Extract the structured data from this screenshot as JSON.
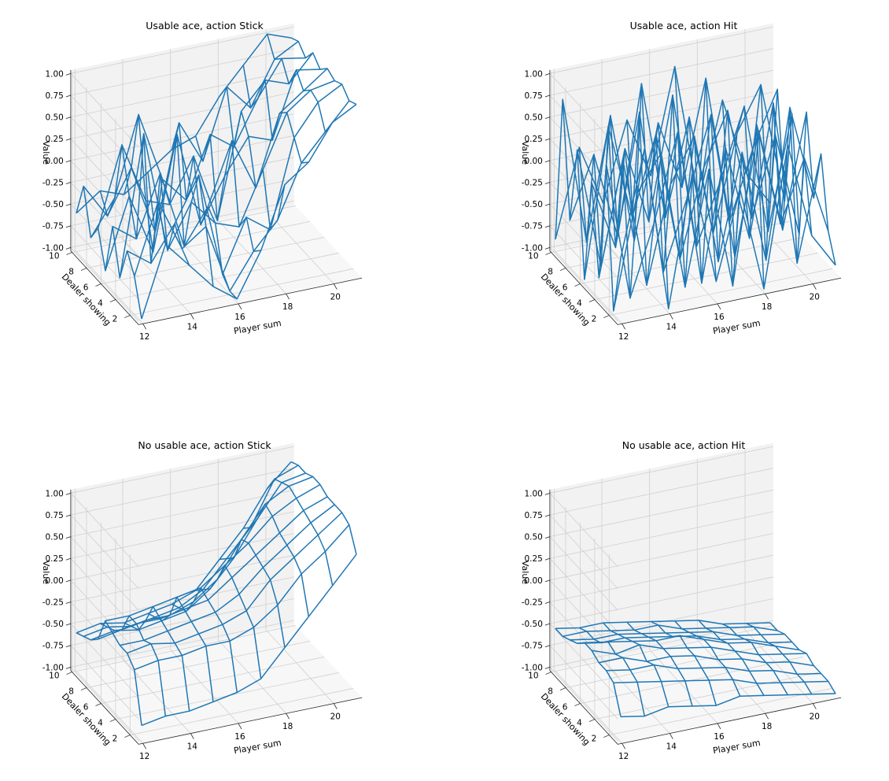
{
  "chart_data": [
    {
      "type": "wireframe-3d",
      "title": "Usable ace, action Stick",
      "xlabel": "Player sum",
      "ylabel": "Dealer showing",
      "zlabel": "Value",
      "x_ticks": [
        12,
        14,
        16,
        18,
        20
      ],
      "y_ticks": [
        2,
        4,
        6,
        8,
        10
      ],
      "z_ticks": [
        "-1.00",
        "-0.75",
        "-0.50",
        "-0.25",
        "0.00",
        "0.25",
        "0.50",
        "0.75",
        "1.00"
      ],
      "x": [
        12,
        13,
        14,
        15,
        16,
        17,
        18,
        19,
        20,
        21
      ],
      "y": [
        1,
        2,
        3,
        4,
        5,
        6,
        7,
        8,
        9,
        10
      ],
      "zlim": [
        -1,
        1
      ],
      "z": [
        [
          -1.0,
          -0.2,
          -0.5,
          -0.8,
          -1.0,
          -0.5,
          0.2,
          0.4,
          0.8,
          0.95
        ],
        [
          -0.6,
          0.2,
          -0.4,
          -0.2,
          -1.0,
          -0.6,
          -0.3,
          0.3,
          0.6,
          0.9
        ],
        [
          -0.4,
          -0.6,
          -0.2,
          0.3,
          -0.9,
          -0.3,
          -0.5,
          0.5,
          0.85,
          1.0
        ],
        [
          -0.8,
          0.8,
          -0.6,
          -0.1,
          -0.4,
          -0.5,
          0.1,
          0.7,
          0.9,
          0.95
        ],
        [
          -0.3,
          -0.5,
          0.2,
          -0.7,
          -0.3,
          0.4,
          -0.2,
          0.6,
          0.8,
          1.0
        ],
        [
          -0.9,
          -0.1,
          -0.8,
          0.5,
          -0.6,
          -0.1,
          0.3,
          0.2,
          0.95,
          0.9
        ],
        [
          -0.5,
          0.4,
          -0.3,
          -0.4,
          0.1,
          -0.7,
          0.5,
          0.8,
          0.7,
          1.0
        ],
        [
          -0.7,
          -0.3,
          0.6,
          -0.2,
          -0.5,
          0.2,
          0.0,
          0.5,
          0.9,
          0.85
        ],
        [
          -0.2,
          -0.6,
          -0.1,
          -0.9,
          0.3,
          -0.2,
          0.6,
          0.3,
          0.8,
          0.95
        ],
        [
          -0.6,
          -0.4,
          -0.5,
          -0.3,
          -0.1,
          0.0,
          0.4,
          0.7,
          1.0,
          0.9
        ]
      ]
    },
    {
      "type": "wireframe-3d",
      "title": "Usable ace, action Hit",
      "xlabel": "Player sum",
      "ylabel": "Dealer showing",
      "zlabel": "Value",
      "x_ticks": [
        12,
        14,
        16,
        18,
        20
      ],
      "y_ticks": [
        2,
        4,
        6,
        8,
        10
      ],
      "z_ticks": [
        "-1.00",
        "-0.75",
        "-0.50",
        "-0.25",
        "0.00",
        "0.25",
        "0.50",
        "0.75",
        "1.00"
      ],
      "x": [
        12,
        13,
        14,
        15,
        16,
        17,
        18,
        19,
        20,
        21
      ],
      "y": [
        1,
        2,
        3,
        4,
        5,
        6,
        7,
        8,
        9,
        10
      ],
      "zlim": [
        -1,
        1
      ],
      "z": [
        [
          -0.3,
          0.9,
          -1.0,
          0.5,
          -0.8,
          0.2,
          -1.0,
          0.6,
          -0.5,
          -0.9
        ],
        [
          -1.0,
          0.3,
          0.7,
          -0.9,
          0.4,
          -1.0,
          0.8,
          -0.4,
          0.3,
          -0.6
        ],
        [
          0.6,
          -1.0,
          -0.2,
          0.8,
          -1.0,
          0.5,
          -0.6,
          0.9,
          -1.0,
          0.2
        ],
        [
          -0.8,
          0.5,
          -1.0,
          0.1,
          0.6,
          -0.9,
          0.3,
          -1.0,
          0.7,
          -0.4
        ],
        [
          0.2,
          -0.6,
          0.9,
          -1.0,
          -0.2,
          0.7,
          -1.0,
          0.4,
          -0.8,
          0.5
        ],
        [
          -1.0,
          0.7,
          -0.4,
          0.5,
          -1.0,
          0.0,
          0.6,
          -0.7,
          0.2,
          -1.0
        ],
        [
          0.4,
          -1.0,
          0.3,
          -0.6,
          0.8,
          -1.0,
          -0.3,
          0.5,
          -1.0,
          0.3
        ],
        [
          -0.5,
          0.2,
          -0.8,
          0.9,
          -0.7,
          0.4,
          -1.0,
          0.1,
          0.6,
          -0.8
        ],
        [
          0.8,
          -0.9,
          0.5,
          -1.0,
          0.3,
          -0.5,
          0.7,
          -1.0,
          -0.2,
          0.4
        ],
        [
          -0.9,
          0.1,
          -0.6,
          0.3,
          -0.4,
          0.8,
          -0.8,
          0.3,
          -0.6,
          -1.0
        ]
      ]
    },
    {
      "type": "wireframe-3d",
      "title": "No usable ace, action Stick",
      "xlabel": "Player sum",
      "ylabel": "Dealer showing",
      "zlabel": "Value",
      "x_ticks": [
        12,
        14,
        16,
        18,
        20
      ],
      "y_ticks": [
        2,
        4,
        6,
        8,
        10
      ],
      "z_ticks": [
        "-1.00",
        "-0.75",
        "-0.50",
        "-0.25",
        "0.00",
        "0.25",
        "0.50",
        "0.75",
        "1.00"
      ],
      "x": [
        12,
        13,
        14,
        15,
        16,
        17,
        18,
        19,
        20,
        21
      ],
      "y": [
        1,
        2,
        3,
        4,
        5,
        6,
        7,
        8,
        9,
        10
      ],
      "zlim": [
        -1,
        1
      ],
      "z": [
        [
          -0.85,
          -0.8,
          -0.8,
          -0.75,
          -0.7,
          -0.6,
          -0.3,
          0.0,
          0.3,
          0.6
        ],
        [
          -0.3,
          -0.25,
          -0.25,
          -0.2,
          -0.2,
          -0.1,
          0.1,
          0.4,
          0.6,
          0.85
        ],
        [
          -0.2,
          -0.15,
          -0.2,
          -0.15,
          -0.1,
          0.0,
          0.3,
          0.5,
          0.7,
          0.9
        ],
        [
          -0.2,
          -0.2,
          -0.15,
          -0.1,
          -0.05,
          0.1,
          0.35,
          0.55,
          0.75,
          0.9
        ],
        [
          -0.15,
          -0.1,
          -0.1,
          -0.05,
          0.0,
          0.2,
          0.4,
          0.6,
          0.8,
          0.9
        ],
        [
          -0.1,
          -0.1,
          -0.05,
          0.0,
          0.05,
          0.25,
          0.45,
          0.7,
          0.85,
          0.95
        ],
        [
          -0.4,
          -0.35,
          -0.3,
          -0.3,
          -0.2,
          0.0,
          0.4,
          0.75,
          0.9,
          0.95
        ],
        [
          -0.5,
          -0.45,
          -0.5,
          -0.45,
          -0.4,
          -0.2,
          0.1,
          0.5,
          0.85,
          0.9
        ],
        [
          -0.55,
          -0.5,
          -0.55,
          -0.5,
          -0.45,
          -0.3,
          0.0,
          0.3,
          0.8,
          0.9
        ],
        [
          -0.6,
          -0.55,
          -0.6,
          -0.55,
          -0.5,
          -0.4,
          -0.1,
          0.2,
          0.6,
          0.85
        ]
      ]
    },
    {
      "type": "wireframe-3d",
      "title": "No usable ace, action Hit",
      "xlabel": "Player sum",
      "ylabel": "Dealer showing",
      "zlabel": "Value",
      "x_ticks": [
        12,
        14,
        16,
        18,
        20
      ],
      "y_ticks": [
        2,
        4,
        6,
        8,
        10
      ],
      "z_ticks": [
        "-1.00",
        "-0.75",
        "-0.50",
        "-0.25",
        "0.00",
        "0.25",
        "0.50",
        "0.75",
        "1.00"
      ],
      "x": [
        12,
        13,
        14,
        15,
        16,
        17,
        18,
        19,
        20,
        21
      ],
      "y": [
        1,
        2,
        3,
        4,
        5,
        6,
        7,
        8,
        9,
        10
      ],
      "zlim": [
        -1,
        1
      ],
      "z": [
        [
          -0.75,
          -0.8,
          -0.75,
          -0.8,
          -0.85,
          -0.8,
          -0.85,
          -0.9,
          -0.95,
          -1.0
        ],
        [
          -0.45,
          -0.5,
          -0.55,
          -0.6,
          -0.65,
          -0.7,
          -0.8,
          -0.85,
          -0.9,
          -0.95
        ],
        [
          -0.4,
          -0.45,
          -0.45,
          -0.55,
          -0.6,
          -0.65,
          -0.75,
          -0.8,
          -0.9,
          -0.95
        ],
        [
          -0.4,
          -0.4,
          -0.5,
          -0.5,
          -0.55,
          -0.65,
          -0.7,
          -0.8,
          -0.85,
          -0.95
        ],
        [
          -0.35,
          -0.45,
          -0.4,
          -0.5,
          -0.55,
          -0.6,
          -0.7,
          -0.8,
          -0.85,
          -0.9
        ],
        [
          -0.35,
          -0.4,
          -0.45,
          -0.5,
          -0.5,
          -0.6,
          -0.7,
          -0.75,
          -0.85,
          -0.95
        ],
        [
          -0.45,
          -0.5,
          -0.5,
          -0.55,
          -0.6,
          -0.65,
          -0.75,
          -0.8,
          -0.9,
          -0.95
        ],
        [
          -0.5,
          -0.55,
          -0.55,
          -0.6,
          -0.65,
          -0.7,
          -0.75,
          -0.85,
          -0.9,
          -0.95
        ],
        [
          -0.55,
          -0.55,
          -0.6,
          -0.65,
          -0.65,
          -0.75,
          -0.8,
          -0.85,
          -0.9,
          -1.0
        ],
        [
          -0.55,
          -0.6,
          -0.6,
          -0.65,
          -0.7,
          -0.75,
          -0.8,
          -0.9,
          -0.95,
          -1.0
        ]
      ]
    }
  ],
  "style": {
    "line_color": "#1f77b4",
    "pane_colors": [
      "#f2f2f2",
      "#ebebeb",
      "#f7f7f7"
    ],
    "grid_color": "#d0d0d0"
  }
}
